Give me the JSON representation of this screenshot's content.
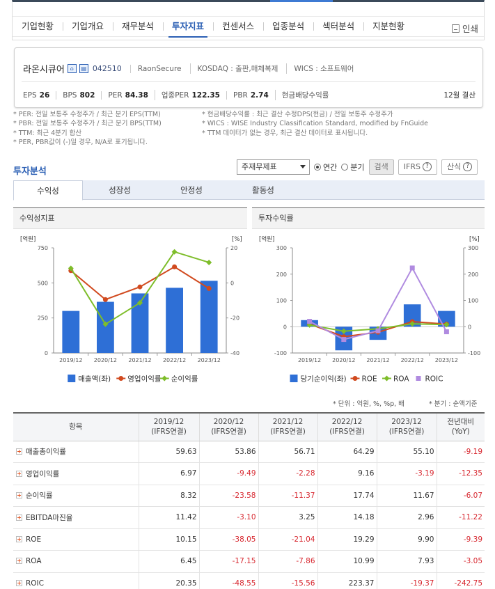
{
  "nav": {
    "tabs": [
      "기업현황",
      "기업개요",
      "재무분석",
      "투자지표",
      "컨센서스",
      "업종분석",
      "섹터분석",
      "지분현황"
    ],
    "active_index": 3,
    "print_label": "인쇄"
  },
  "company": {
    "name": "라온시큐어",
    "code": "042510",
    "english_name": "RaonSecure",
    "market": "KOSDAQ : 출판,매체복제",
    "wics": "WICS : 소프트웨어",
    "metrics": [
      {
        "label": "EPS",
        "value": "26"
      },
      {
        "label": "BPS",
        "value": "802"
      },
      {
        "label": "PER",
        "value": "84.38"
      },
      {
        "label": "업종PER",
        "value": "122.35"
      },
      {
        "label": "PBR",
        "value": "2.74"
      },
      {
        "label": "현금배당수익률",
        "value": ""
      }
    ],
    "settlement": "12월 결산"
  },
  "notes_left": [
    "* PER: 전일 보통주 수정주가 / 최근 분기 EPS(TTM)",
    "* PBR: 전일 보통주 수정주가 / 최근 분기 BPS(TTM)",
    "* TTM: 최근 4분기 합산",
    "* PER, PBR값이 (-)일 경우, N/A로 표기됩니다."
  ],
  "notes_right": [
    "* 현금배당수익률 : 최근 결산 수정DPS(현금) / 전일 보통주 수정주가",
    "* WICS : WISE Industry Classification Standard, modified by FnGuide",
    "* TTM 데이터가 없는 경우, 최근 결산 데이터로 표시됩니다."
  ],
  "section": {
    "title": "투자분석",
    "select_value": "주재무제표",
    "radio_annual": "연간",
    "radio_quarter": "분기",
    "search_label": "검색",
    "ifrs_label": "IFRS",
    "calc_label": "산식"
  },
  "subtabs": [
    "수익성",
    "성장성",
    "안정성",
    "활동성"
  ],
  "colors": {
    "bar": "#2e6fd6",
    "red": "#d14a1f",
    "green": "#7ebd2a",
    "purple": "#b08be0",
    "neg": "#d7262e"
  },
  "chart_data": [
    {
      "type": "bar",
      "title": "수익성지표",
      "categories": [
        "2019/12",
        "2020/12",
        "2021/12",
        "2022/12",
        "2023/12"
      ],
      "y_left_unit": "[억원]",
      "y_right_unit": "[%]",
      "ylim_left": [
        0,
        750
      ],
      "ylim_right": [
        -40,
        20
      ],
      "yticks_left": [
        "750",
        "500",
        "250",
        "0"
      ],
      "yticks_right": [
        "20",
        "0",
        "-20",
        "-40"
      ],
      "series": [
        {
          "name": "매출액(좌)",
          "kind": "bar",
          "axis": "left",
          "values": [
            300,
            365,
            425,
            465,
            515
          ]
        },
        {
          "name": "영업이익률",
          "kind": "line",
          "axis": "right",
          "values": [
            6.97,
            -9.49,
            -2.28,
            9.16,
            -3.19
          ]
        },
        {
          "name": "순이익률",
          "kind": "line",
          "axis": "right",
          "values": [
            8.32,
            -23.58,
            -11.37,
            17.74,
            11.67
          ]
        }
      ]
    },
    {
      "type": "bar",
      "title": "투자수익률",
      "categories": [
        "2019/12",
        "2020/12",
        "2021/12",
        "2022/12",
        "2023/12"
      ],
      "y_left_unit": "[억원]",
      "y_right_unit": "[%]",
      "ylim_left": [
        -100,
        300
      ],
      "ylim_right": [
        -100,
        300
      ],
      "yticks_left": [
        "300",
        "200",
        "100",
        "0",
        "-100"
      ],
      "yticks_right": [
        "300",
        "200",
        "100",
        "0",
        "-100"
      ],
      "series": [
        {
          "name": "당기순이익(좌)",
          "kind": "bar",
          "axis": "left",
          "values": [
            25,
            -90,
            -50,
            85,
            60
          ]
        },
        {
          "name": "ROE",
          "kind": "line",
          "axis": "right",
          "values": [
            10.15,
            -38.05,
            -21.04,
            19.29,
            9.9
          ]
        },
        {
          "name": "ROA",
          "kind": "line",
          "axis": "right",
          "values": [
            6.45,
            -17.15,
            -7.86,
            10.99,
            7.93
          ]
        },
        {
          "name": "ROIC",
          "kind": "line",
          "axis": "right",
          "values": [
            20.35,
            -48.55,
            -15.56,
            223.37,
            -19.37
          ]
        }
      ]
    }
  ],
  "units_left": "* 단위 : 억원, %, %p, 배",
  "units_right": "* 분기 : 순액기준",
  "table": {
    "headers": [
      {
        "top": "항목",
        "bottom": ""
      },
      {
        "top": "2019/12",
        "bottom": "(IFRS연결)"
      },
      {
        "top": "2020/12",
        "bottom": "(IFRS연결)"
      },
      {
        "top": "2021/12",
        "bottom": "(IFRS연결)"
      },
      {
        "top": "2022/12",
        "bottom": "(IFRS연결)"
      },
      {
        "top": "2023/12",
        "bottom": "(IFRS연결)"
      },
      {
        "top": "전년대비",
        "bottom": "(YoY)"
      }
    ],
    "rows": [
      {
        "label": "매출총이익률",
        "values": [
          "59.63",
          "53.86",
          "56.71",
          "64.29",
          "55.10",
          "-9.19"
        ]
      },
      {
        "label": "영업이익률",
        "values": [
          "6.97",
          "-9.49",
          "-2.28",
          "9.16",
          "-3.19",
          "-12.35"
        ]
      },
      {
        "label": "순이익률",
        "values": [
          "8.32",
          "-23.58",
          "-11.37",
          "17.74",
          "11.67",
          "-6.07"
        ]
      },
      {
        "label": "EBITDA마진율",
        "values": [
          "11.42",
          "-3.10",
          "3.25",
          "14.18",
          "2.96",
          "-11.22"
        ]
      },
      {
        "label": "ROE",
        "values": [
          "10.15",
          "-38.05",
          "-21.04",
          "19.29",
          "9.90",
          "-9.39"
        ]
      },
      {
        "label": "ROA",
        "values": [
          "6.45",
          "-17.15",
          "-7.86",
          "10.99",
          "7.93",
          "-3.05"
        ]
      },
      {
        "label": "ROIC",
        "values": [
          "20.35",
          "-48.55",
          "-15.56",
          "223.37",
          "-19.37",
          "-242.75"
        ]
      }
    ]
  }
}
